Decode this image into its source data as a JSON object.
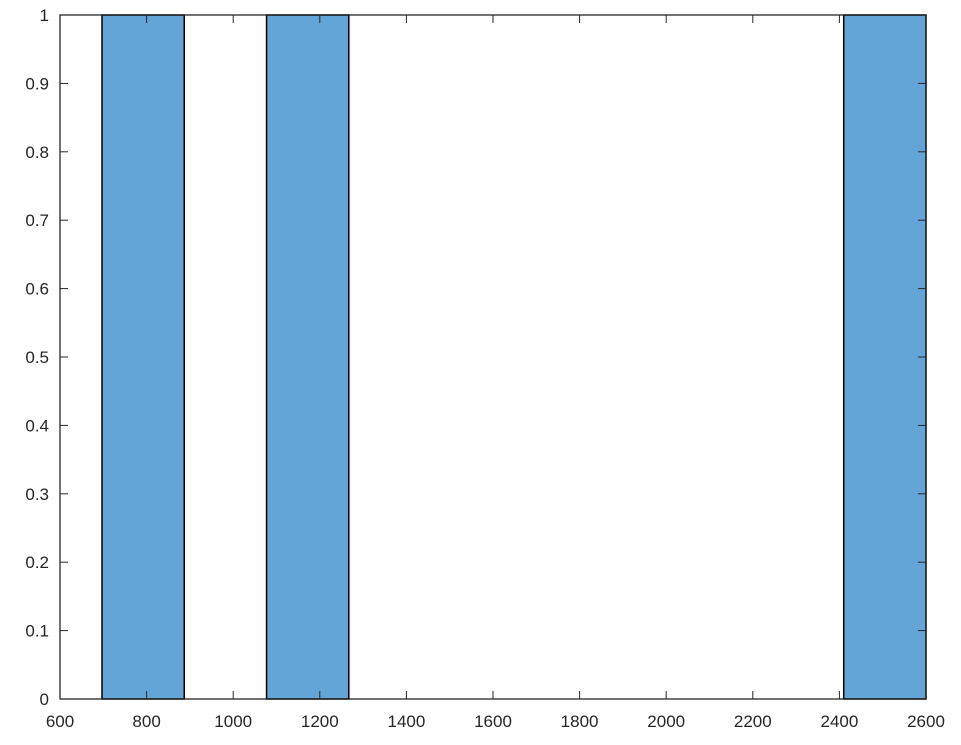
{
  "chart_data": {
    "type": "histogram",
    "title": "",
    "xlabel": "",
    "ylabel": "",
    "xlim": [
      600,
      2600
    ],
    "ylim": [
      0,
      1
    ],
    "xticks": [
      600,
      800,
      1000,
      1200,
      1400,
      1600,
      1800,
      2000,
      2200,
      2400,
      2600
    ],
    "yticks": [
      0,
      0.1,
      0.2,
      0.3,
      0.4,
      0.5,
      0.6,
      0.7,
      0.8,
      0.9,
      1
    ],
    "bin_width": 190,
    "bars": [
      {
        "x_start": 697,
        "x_end": 887,
        "value": 1
      },
      {
        "x_start": 1077,
        "x_end": 1267,
        "value": 1
      },
      {
        "x_start": 2410,
        "x_end": 2600,
        "value": 1
      }
    ],
    "bar_color": "#62a5d6",
    "edge_color": "#000000",
    "axis_color": "#262626",
    "grid": false,
    "box": true
  }
}
